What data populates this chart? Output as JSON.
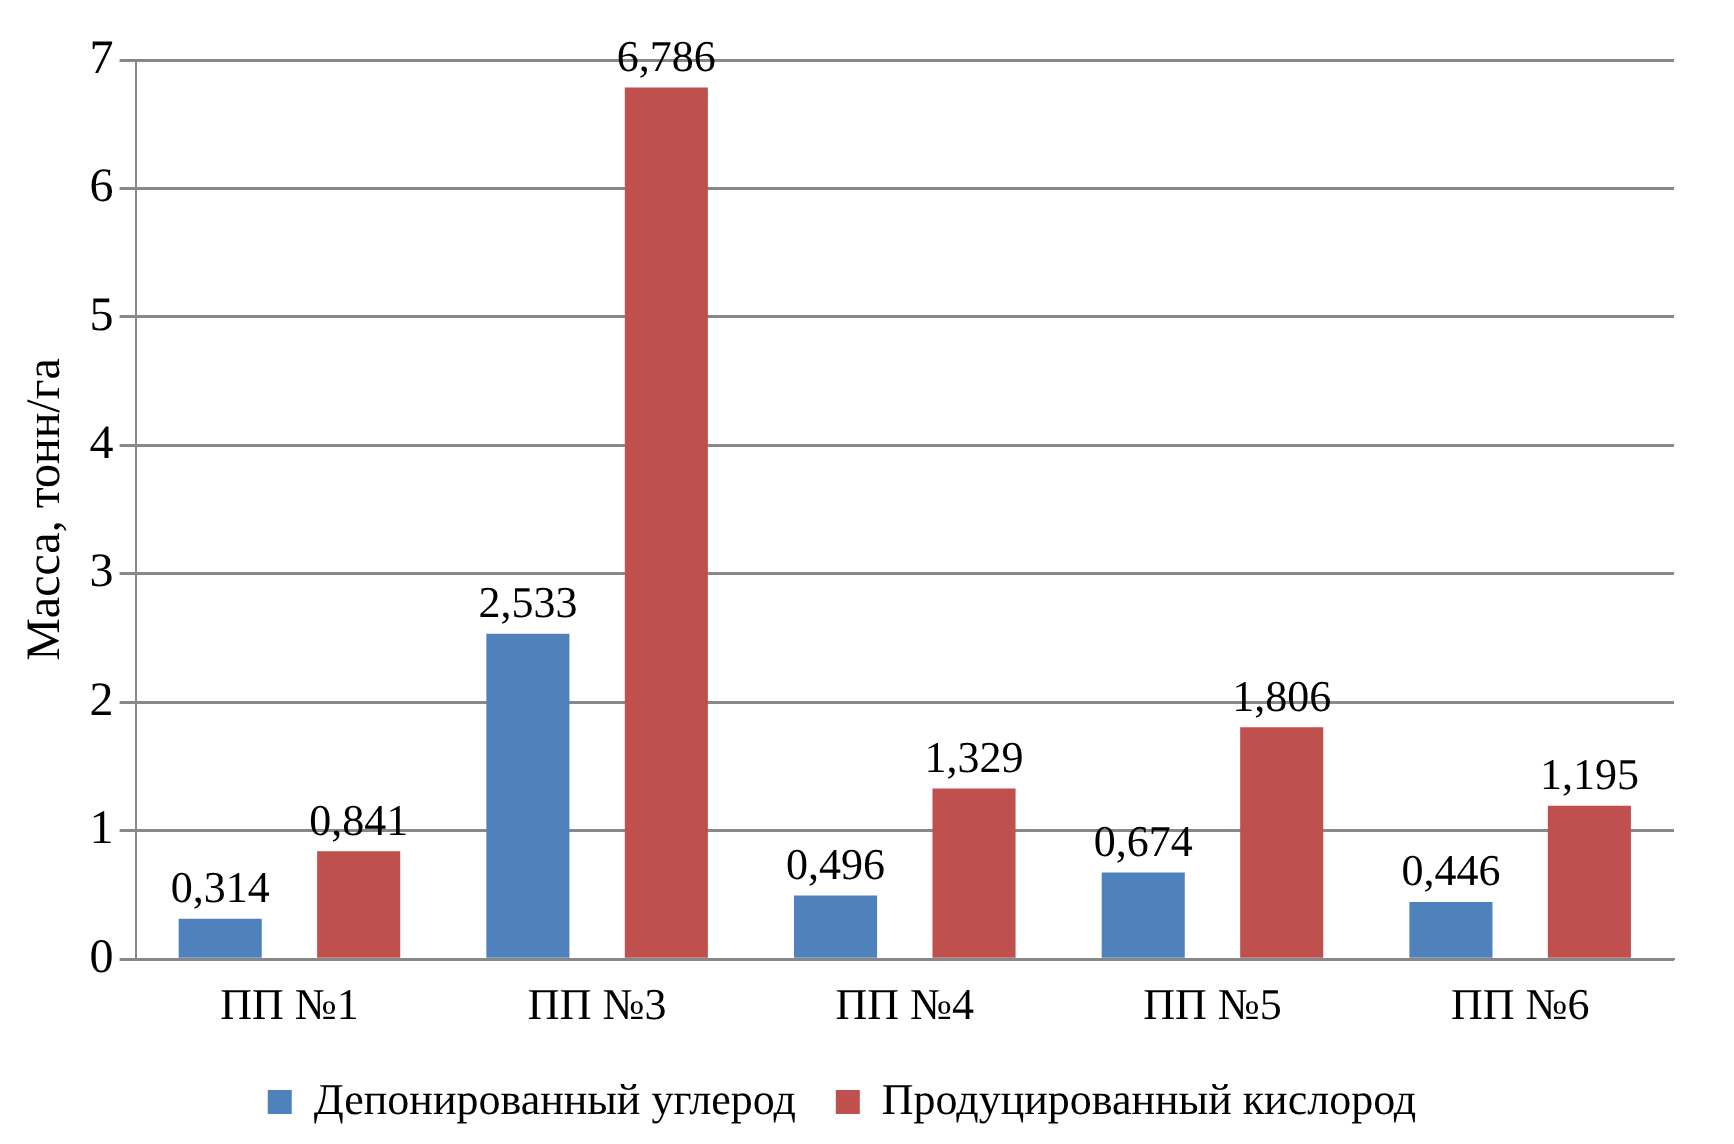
{
  "chart_data": {
    "type": "bar",
    "ylabel": "Масса, тонн/га",
    "categories": [
      "ПП №1",
      "ПП №3",
      "ПП №4",
      "ПП №5",
      "ПП №6"
    ],
    "series": [
      {
        "name": "Депонированный углерод",
        "color": "#4f81bd",
        "values": [
          0.314,
          2.533,
          0.496,
          0.674,
          0.446
        ],
        "value_labels": [
          "0,314",
          "2,533",
          "0,496",
          "0,674",
          "0,446"
        ]
      },
      {
        "name": "Продуцированный кислород",
        "color": "#c0504d",
        "values": [
          0.841,
          6.786,
          1.329,
          1.806,
          1.195
        ],
        "value_labels": [
          "0,841",
          "6,786",
          "1,329",
          "1,806",
          "1,195"
        ]
      }
    ],
    "ylim": [
      0,
      7
    ],
    "yticks": [
      0,
      1,
      2,
      3,
      4,
      5,
      6,
      7
    ],
    "grid": "y",
    "legend": "bottom"
  }
}
